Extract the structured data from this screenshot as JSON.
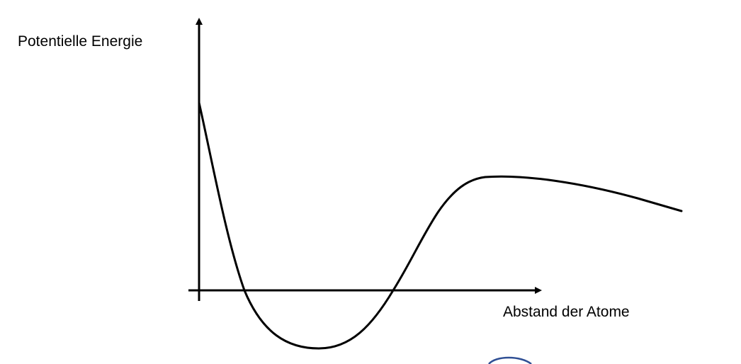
{
  "diagram": {
    "y_axis_label": "Potentielle Energie",
    "x_axis_label": "Abstand der Atome",
    "line_color": "#000000",
    "decoration_color": "#2f4f94"
  }
}
